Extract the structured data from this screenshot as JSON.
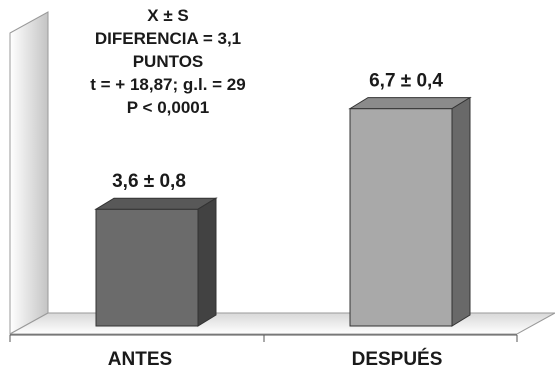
{
  "chart_data": {
    "type": "bar",
    "title": "",
    "xlabel": "",
    "ylabel": "",
    "categories": [
      "ANTES",
      "DESPUÉS"
    ],
    "values": [
      3.6,
      6.7
    ],
    "data_labels": [
      "3,6 ± 0,8",
      "6,7 ± 0,4"
    ],
    "ylim": [
      0,
      9
    ],
    "grid": false,
    "bar_colors": [
      "#6b6b6b",
      "#a9a9a9"
    ],
    "annotation": [
      "X ± S",
      "DIFERENCIA = 3,1",
      "PUNTOS",
      "t =  + 18,87;  g.l. = 29",
      "P < 0,0001"
    ]
  }
}
